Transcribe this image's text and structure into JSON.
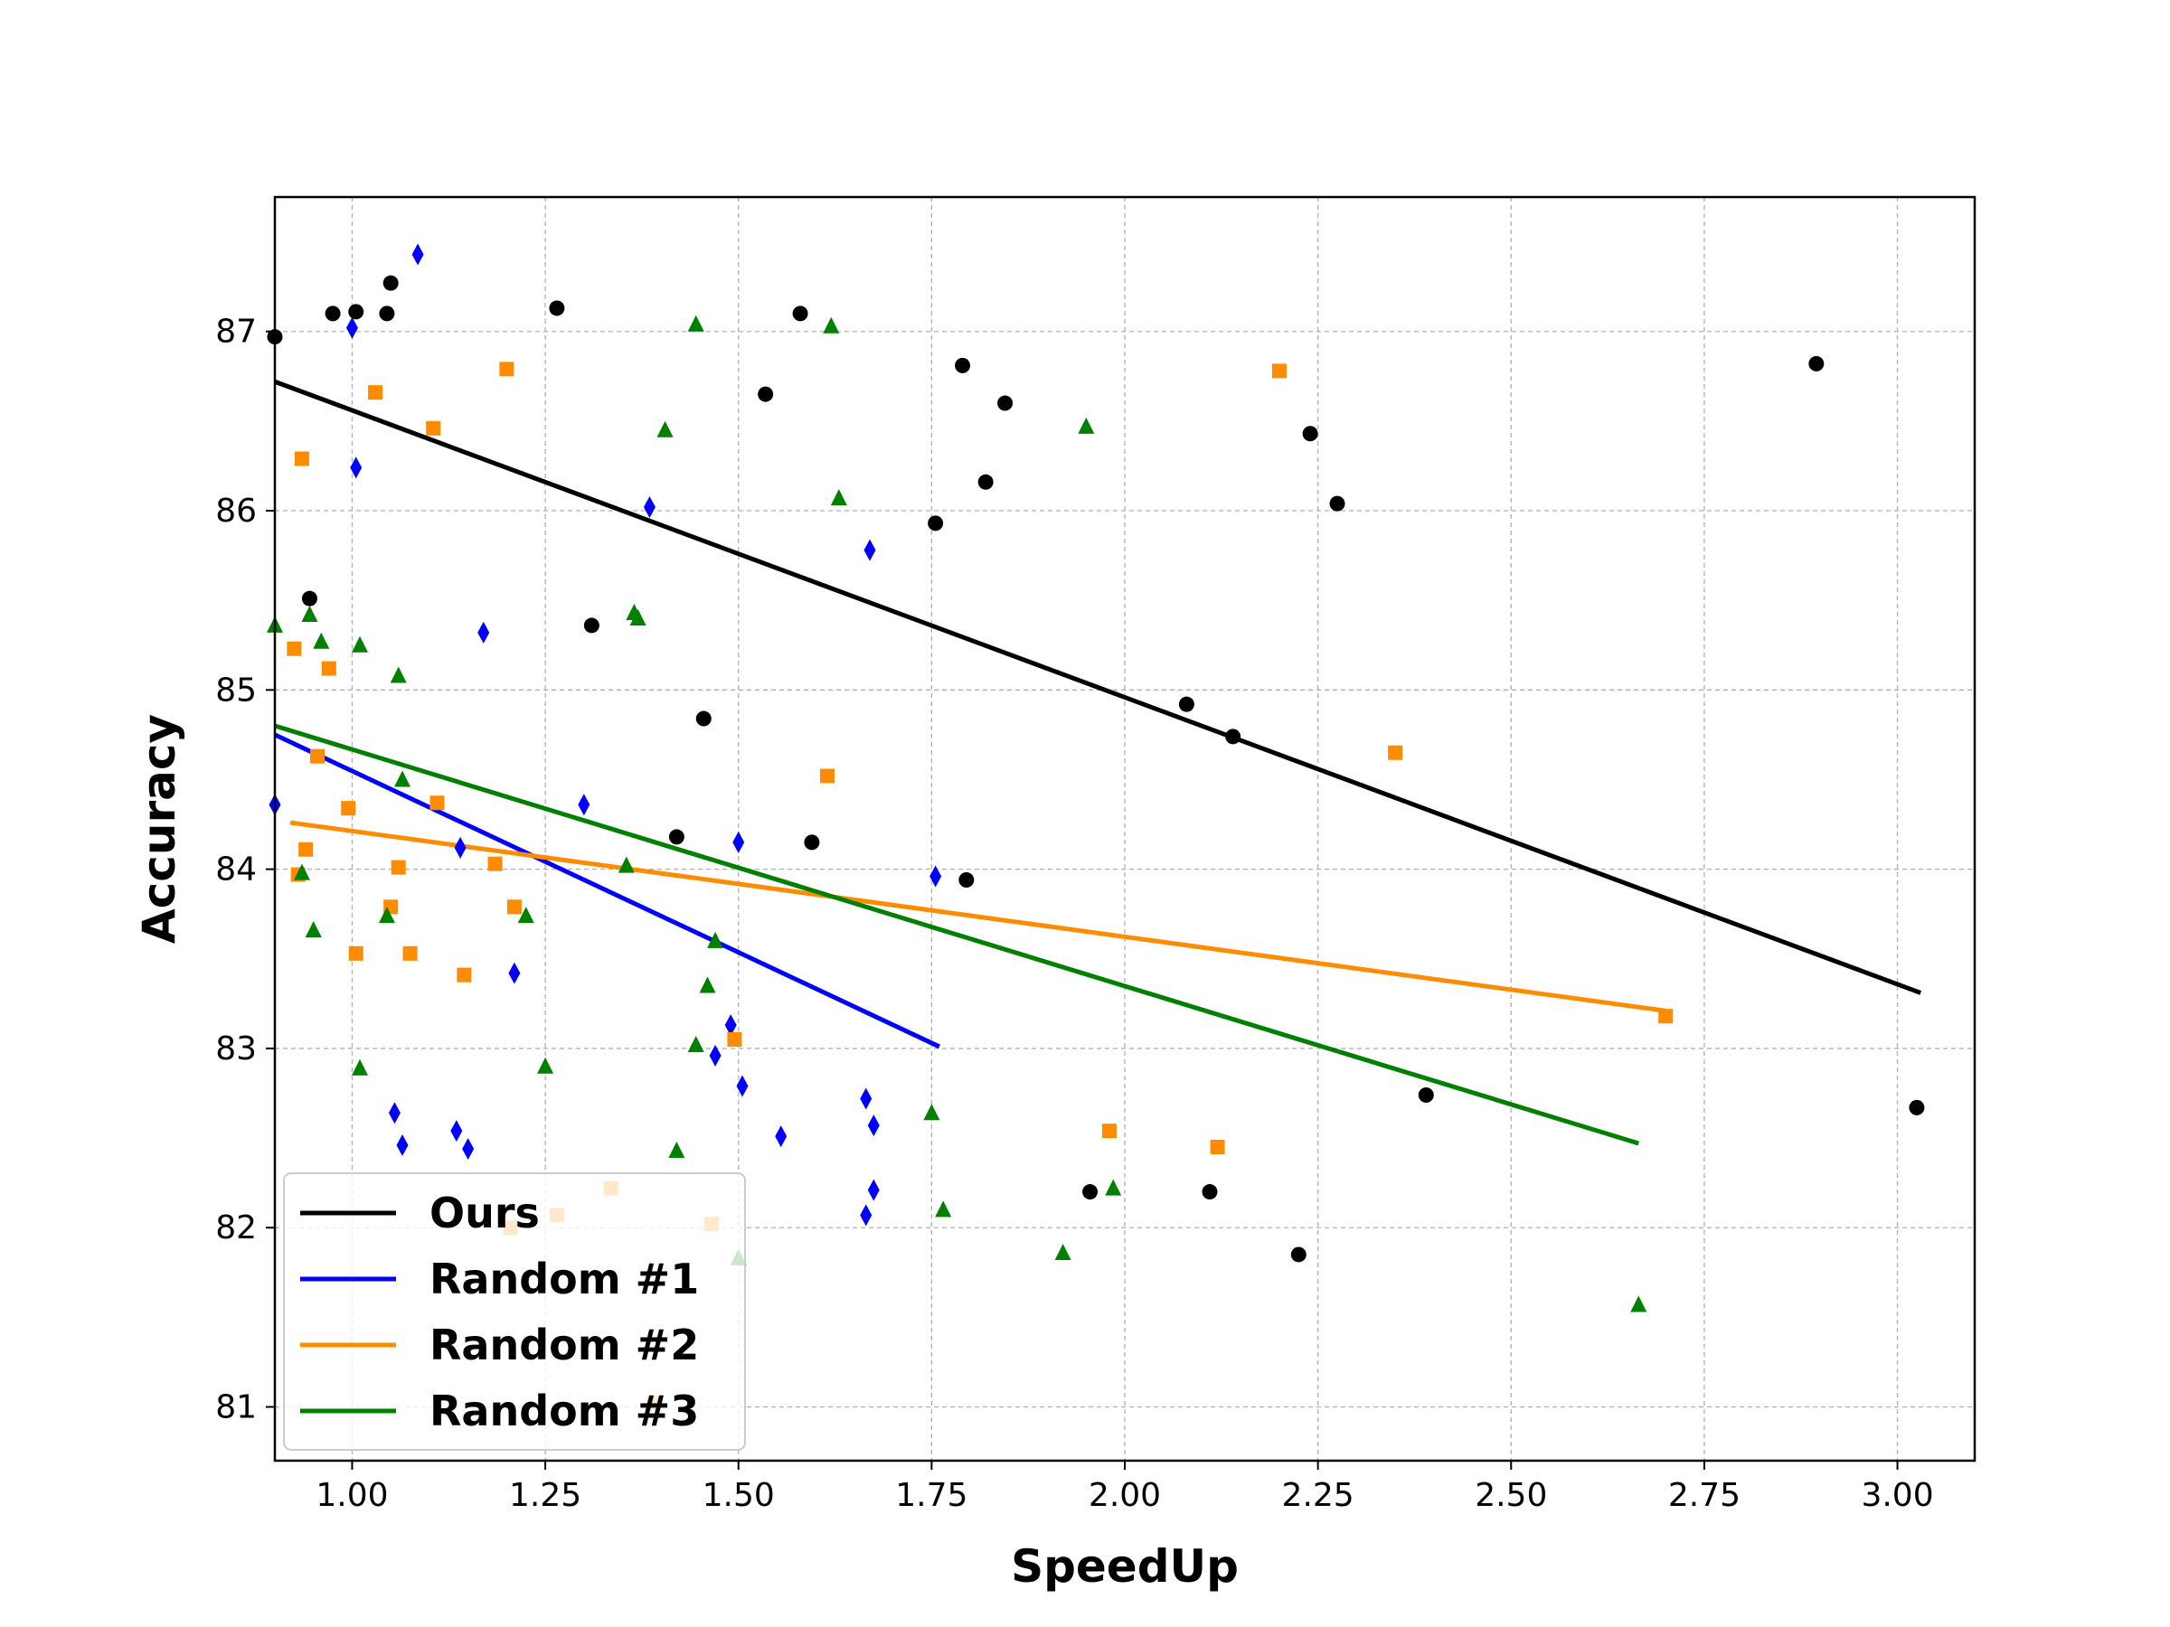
{
  "chart_data": {
    "type": "scatter",
    "title": "",
    "xlabel": "SpeedUp",
    "ylabel": "Accuracy",
    "xlim": [
      0.9,
      3.1
    ],
    "ylim": [
      80.7,
      87.75
    ],
    "xticks": [
      "1.00",
      "1.25",
      "1.50",
      "1.75",
      "2.00",
      "2.25",
      "2.50",
      "2.75",
      "3.00"
    ],
    "yticks": [
      "81",
      "82",
      "83",
      "84",
      "85",
      "86",
      "87"
    ],
    "grid": true,
    "legend_position": "bottom-left",
    "series": [
      {
        "name": "Ours",
        "color": "#000000",
        "marker": "circle",
        "points": [
          [
            0.9,
            86.97
          ],
          [
            0.945,
            85.51
          ],
          [
            0.975,
            87.1
          ],
          [
            1.005,
            87.11
          ],
          [
            1.045,
            87.1
          ],
          [
            1.05,
            87.27
          ],
          [
            1.265,
            87.13
          ],
          [
            1.31,
            85.36
          ],
          [
            1.42,
            84.18
          ],
          [
            1.455,
            84.84
          ],
          [
            1.535,
            86.65
          ],
          [
            1.58,
            87.1
          ],
          [
            1.595,
            84.15
          ],
          [
            1.755,
            85.93
          ],
          [
            1.79,
            86.81
          ],
          [
            1.795,
            83.94
          ],
          [
            1.82,
            86.16
          ],
          [
            1.845,
            86.6
          ],
          [
            1.955,
            82.2
          ],
          [
            2.08,
            84.92
          ],
          [
            2.11,
            82.2
          ],
          [
            2.14,
            84.74
          ],
          [
            2.225,
            81.85
          ],
          [
            2.24,
            86.43
          ],
          [
            2.275,
            86.04
          ],
          [
            2.39,
            82.74
          ],
          [
            2.895,
            86.82
          ],
          [
            3.025,
            82.67
          ]
        ],
        "fit": [
          [
            0.9,
            86.72
          ],
          [
            3.03,
            83.31
          ]
        ]
      },
      {
        "name": "Random #1",
        "color": "#0000ff",
        "marker": "diamond",
        "points": [
          [
            0.9,
            84.36
          ],
          [
            1.0,
            87.02
          ],
          [
            1.005,
            86.24
          ],
          [
            1.055,
            82.64
          ],
          [
            1.065,
            82.46
          ],
          [
            1.085,
            87.43
          ],
          [
            1.135,
            82.54
          ],
          [
            1.14,
            84.12
          ],
          [
            1.15,
            82.44
          ],
          [
            1.17,
            85.32
          ],
          [
            1.21,
            83.42
          ],
          [
            1.3,
            84.36
          ],
          [
            1.385,
            86.02
          ],
          [
            1.47,
            82.96
          ],
          [
            1.49,
            83.13
          ],
          [
            1.5,
            84.15
          ],
          [
            1.505,
            82.79
          ],
          [
            1.555,
            82.51
          ],
          [
            1.665,
            82.72
          ],
          [
            1.665,
            82.07
          ],
          [
            1.67,
            85.78
          ],
          [
            1.675,
            82.57
          ],
          [
            1.675,
            82.21
          ],
          [
            1.755,
            83.96
          ]
        ],
        "fit": [
          [
            0.9,
            84.75
          ],
          [
            1.76,
            83.01
          ]
        ]
      },
      {
        "name": "Random #2",
        "color": "#ff8c00",
        "marker": "square",
        "points": [
          [
            0.925,
            85.23
          ],
          [
            0.93,
            83.97
          ],
          [
            0.935,
            86.29
          ],
          [
            0.94,
            84.11
          ],
          [
            0.955,
            84.63
          ],
          [
            0.97,
            85.12
          ],
          [
            0.995,
            84.34
          ],
          [
            1.005,
            83.53
          ],
          [
            1.03,
            86.66
          ],
          [
            1.05,
            83.79
          ],
          [
            1.06,
            84.01
          ],
          [
            1.075,
            83.53
          ],
          [
            1.105,
            86.46
          ],
          [
            1.11,
            84.37
          ],
          [
            1.145,
            83.41
          ],
          [
            1.185,
            84.03
          ],
          [
            1.2,
            86.79
          ],
          [
            1.205,
            82.0
          ],
          [
            1.21,
            83.79
          ],
          [
            1.265,
            82.07
          ],
          [
            1.335,
            82.22
          ],
          [
            1.39,
            81.02
          ],
          [
            1.465,
            82.02
          ],
          [
            1.495,
            83.05
          ],
          [
            1.615,
            84.52
          ],
          [
            1.98,
            82.54
          ],
          [
            2.12,
            82.45
          ],
          [
            2.2,
            86.78
          ],
          [
            2.35,
            84.65
          ],
          [
            2.7,
            83.18
          ]
        ],
        "fit": [
          [
            0.92,
            84.26
          ],
          [
            2.7,
            83.21
          ]
        ]
      },
      {
        "name": "Random #3",
        "color": "#008000",
        "marker": "triangle",
        "points": [
          [
            0.9,
            85.36
          ],
          [
            0.935,
            83.98
          ],
          [
            0.945,
            85.42
          ],
          [
            0.95,
            83.66
          ],
          [
            0.96,
            85.27
          ],
          [
            1.01,
            85.25
          ],
          [
            1.01,
            82.89
          ],
          [
            1.045,
            83.74
          ],
          [
            1.06,
            85.08
          ],
          [
            1.065,
            84.5
          ],
          [
            1.225,
            83.74
          ],
          [
            1.25,
            82.9
          ],
          [
            1.355,
            84.02
          ],
          [
            1.365,
            85.43
          ],
          [
            1.37,
            85.4
          ],
          [
            1.405,
            86.45
          ],
          [
            1.42,
            82.43
          ],
          [
            1.445,
            87.04
          ],
          [
            1.445,
            83.02
          ],
          [
            1.46,
            83.35
          ],
          [
            1.47,
            83.6
          ],
          [
            1.5,
            81.83
          ],
          [
            1.62,
            87.03
          ],
          [
            1.63,
            86.07
          ],
          [
            1.75,
            82.64
          ],
          [
            1.765,
            82.1
          ],
          [
            1.92,
            81.86
          ],
          [
            1.95,
            86.47
          ],
          [
            1.985,
            82.22
          ],
          [
            2.665,
            81.57
          ]
        ],
        "fit": [
          [
            0.9,
            84.8
          ],
          [
            2.665,
            82.47
          ]
        ]
      }
    ]
  }
}
